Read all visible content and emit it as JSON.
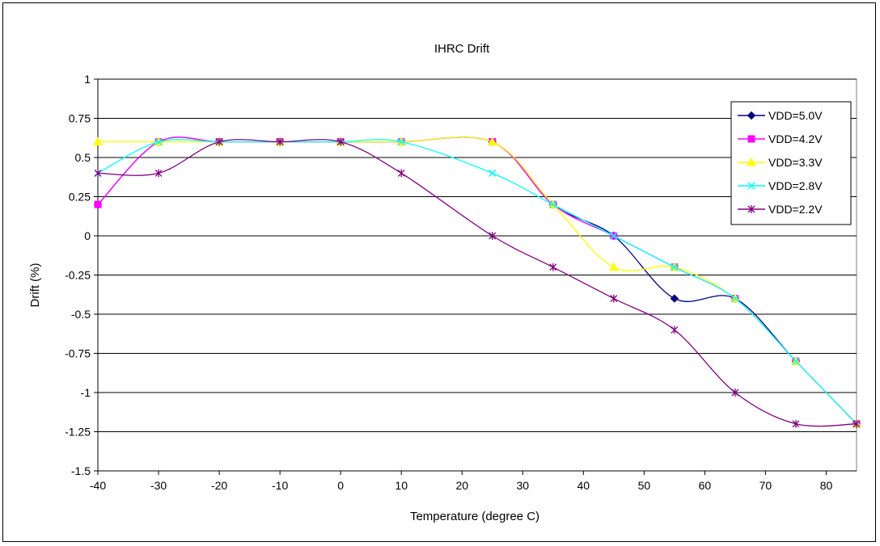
{
  "chart_data": {
    "type": "line",
    "title": "IHRC Drift",
    "xlabel": "Temperature (degree C)",
    "ylabel": "Drift (%)",
    "xlim": [
      -40,
      85
    ],
    "ylim": [
      -1.5,
      1
    ],
    "x_ticks": [
      "-40",
      "-30",
      "-20",
      "-10",
      "0",
      "10",
      "20",
      "30",
      "40",
      "50",
      "60",
      "70",
      "80"
    ],
    "y_ticks": [
      "1",
      "0.75",
      "0.5",
      "0.25",
      "0",
      "-0.25",
      "-0.5",
      "-0.75",
      "-1",
      "-1.25",
      "-1.5"
    ],
    "grid": "horizontal",
    "legend_position": "right",
    "x": [
      -40,
      -30,
      -20,
      -10,
      0,
      10,
      25,
      35,
      45,
      55,
      65,
      75,
      85
    ],
    "series": [
      {
        "name": "VDD=5.0V",
        "color": "#000080",
        "marker": "diamond",
        "values": [
          0.2,
          0.6,
          0.6,
          0.6,
          0.6,
          0.6,
          0.6,
          0.2,
          0.0,
          -0.4,
          -0.4,
          -0.8,
          -1.2
        ]
      },
      {
        "name": "VDD=4.2V",
        "color": "#ff00ff",
        "marker": "square",
        "values": [
          0.2,
          0.6,
          0.6,
          0.6,
          0.6,
          0.6,
          0.6,
          0.2,
          0.0,
          -0.2,
          -0.4,
          -0.8,
          -1.2
        ]
      },
      {
        "name": "VDD=3.3V",
        "color": "#ffff00",
        "marker": "triangle",
        "values": [
          0.6,
          0.6,
          0.6,
          0.6,
          0.6,
          0.6,
          0.6,
          0.2,
          -0.2,
          -0.2,
          -0.4,
          -0.8,
          -1.2
        ]
      },
      {
        "name": "VDD=2.8V",
        "color": "#00ffff",
        "marker": "x",
        "values": [
          0.4,
          0.6,
          0.6,
          0.6,
          0.6,
          0.6,
          0.4,
          0.2,
          0.0,
          -0.2,
          -0.4,
          -0.8,
          -1.2
        ]
      },
      {
        "name": "VDD=2.2V",
        "color": "#800080",
        "marker": "star",
        "values": [
          0.4,
          0.4,
          0.6,
          0.6,
          0.6,
          0.4,
          0.0,
          -0.2,
          -0.4,
          -0.6,
          -1.0,
          -1.2,
          -1.2
        ]
      }
    ]
  }
}
